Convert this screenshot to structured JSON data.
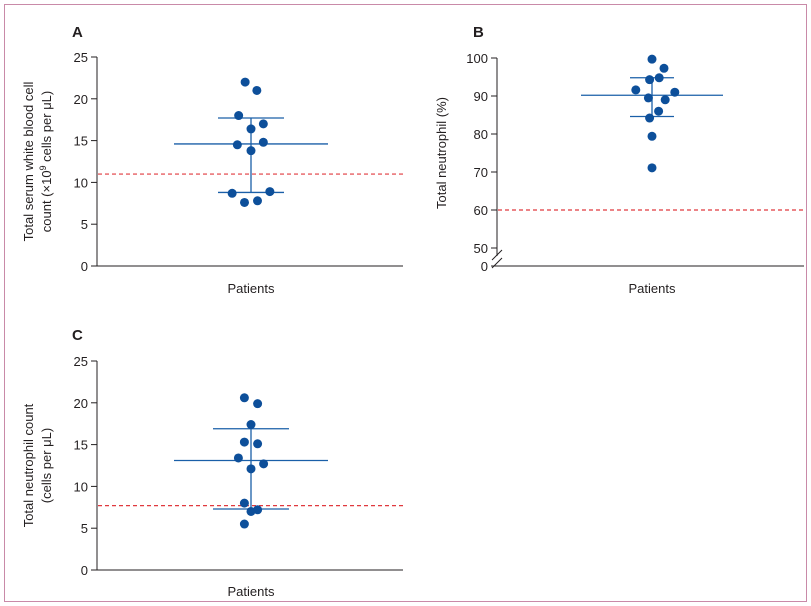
{
  "colors": {
    "points": "#0d4f9a",
    "summary_lines": "#1a5fa8",
    "reference_line": "#e0393e",
    "axes": "#231f20",
    "frame": "#c98aa8"
  },
  "chart_data": [
    {
      "id": "A",
      "type": "scatter",
      "panel_label": "A",
      "xlabel": "Patients",
      "ylabel_line1": "Total serum white blood cell",
      "ylabel_line2_prefix": "count (×10",
      "ylabel_line2_exp": "9",
      "ylabel_line2_suffix": " cells per μL)",
      "ylim": [
        0,
        25
      ],
      "yticks": [
        0,
        5,
        10,
        15,
        20,
        25
      ],
      "axis_break": false,
      "reference_line": 11,
      "mean": 14.6,
      "sd_upper": 17.7,
      "sd_lower": 8.8,
      "points": [
        {
          "x": -0.45,
          "y": 22.0
        },
        {
          "x": 0.45,
          "y": 21.0
        },
        {
          "x": -0.95,
          "y": 18.0
        },
        {
          "x": 0.95,
          "y": 17.0
        },
        {
          "x": 0.0,
          "y": 16.4
        },
        {
          "x": -1.05,
          "y": 14.5
        },
        {
          "x": 0.95,
          "y": 14.8
        },
        {
          "x": 0.0,
          "y": 13.8
        },
        {
          "x": -1.45,
          "y": 8.7
        },
        {
          "x": 1.45,
          "y": 8.9
        },
        {
          "x": -0.5,
          "y": 7.6
        },
        {
          "x": 0.5,
          "y": 7.8
        }
      ]
    },
    {
      "id": "B",
      "type": "scatter",
      "panel_label": "B",
      "xlabel": "Patients",
      "ylabel_line1": "Total neutrophil (%)",
      "ylim": [
        50,
        100
      ],
      "yticks": [
        50,
        60,
        70,
        80,
        90,
        100
      ],
      "zero_label": "0",
      "axis_break": true,
      "reference_line": 60,
      "mean": 90.2,
      "sd_upper": 94.8,
      "sd_lower": 84.6,
      "points": [
        {
          "x": 0.0,
          "y": 99.7
        },
        {
          "x": 1.0,
          "y": 97.3
        },
        {
          "x": 0.6,
          "y": 94.8
        },
        {
          "x": -0.2,
          "y": 94.3
        },
        {
          "x": -1.35,
          "y": 91.6
        },
        {
          "x": 1.9,
          "y": 91.0
        },
        {
          "x": 1.1,
          "y": 89.0
        },
        {
          "x": -0.3,
          "y": 89.5
        },
        {
          "x": 0.55,
          "y": 86.0
        },
        {
          "x": -0.2,
          "y": 84.2
        },
        {
          "x": 0.0,
          "y": 79.4
        },
        {
          "x": 0.0,
          "y": 71.1
        }
      ]
    },
    {
      "id": "C",
      "type": "scatter",
      "panel_label": "C",
      "xlabel": "Patients",
      "ylabel_line1": "Total neutrophil count",
      "ylabel_line2_prefix": "(cells per μL)",
      "ylabel_line2_exp": "",
      "ylabel_line2_suffix": "",
      "ylim": [
        0,
        25
      ],
      "yticks": [
        0,
        5,
        10,
        15,
        20,
        25
      ],
      "axis_break": false,
      "reference_line": 7.7,
      "mean": 13.1,
      "sd_upper": 16.9,
      "sd_lower": 7.3,
      "points": [
        {
          "x": -0.55,
          "y": 20.6
        },
        {
          "x": 0.55,
          "y": 19.9
        },
        {
          "x": 0.0,
          "y": 17.4
        },
        {
          "x": -0.55,
          "y": 15.3
        },
        {
          "x": 0.55,
          "y": 15.1
        },
        {
          "x": -1.05,
          "y": 13.4
        },
        {
          "x": 1.05,
          "y": 12.7
        },
        {
          "x": 0.0,
          "y": 12.1
        },
        {
          "x": -0.55,
          "y": 8.0
        },
        {
          "x": 0.55,
          "y": 7.2
        },
        {
          "x": 0.0,
          "y": 7.0
        },
        {
          "x": -0.55,
          "y": 5.5
        }
      ]
    }
  ]
}
